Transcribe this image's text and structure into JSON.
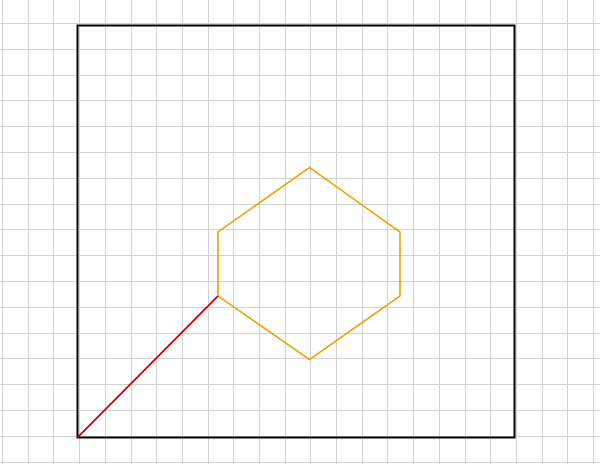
{
  "colors": {
    "background": "#ffffff",
    "grid": "#d3d3d3",
    "square": "#000000",
    "hexagon": "#f0a000",
    "segment": "#cc0000"
  }
}
